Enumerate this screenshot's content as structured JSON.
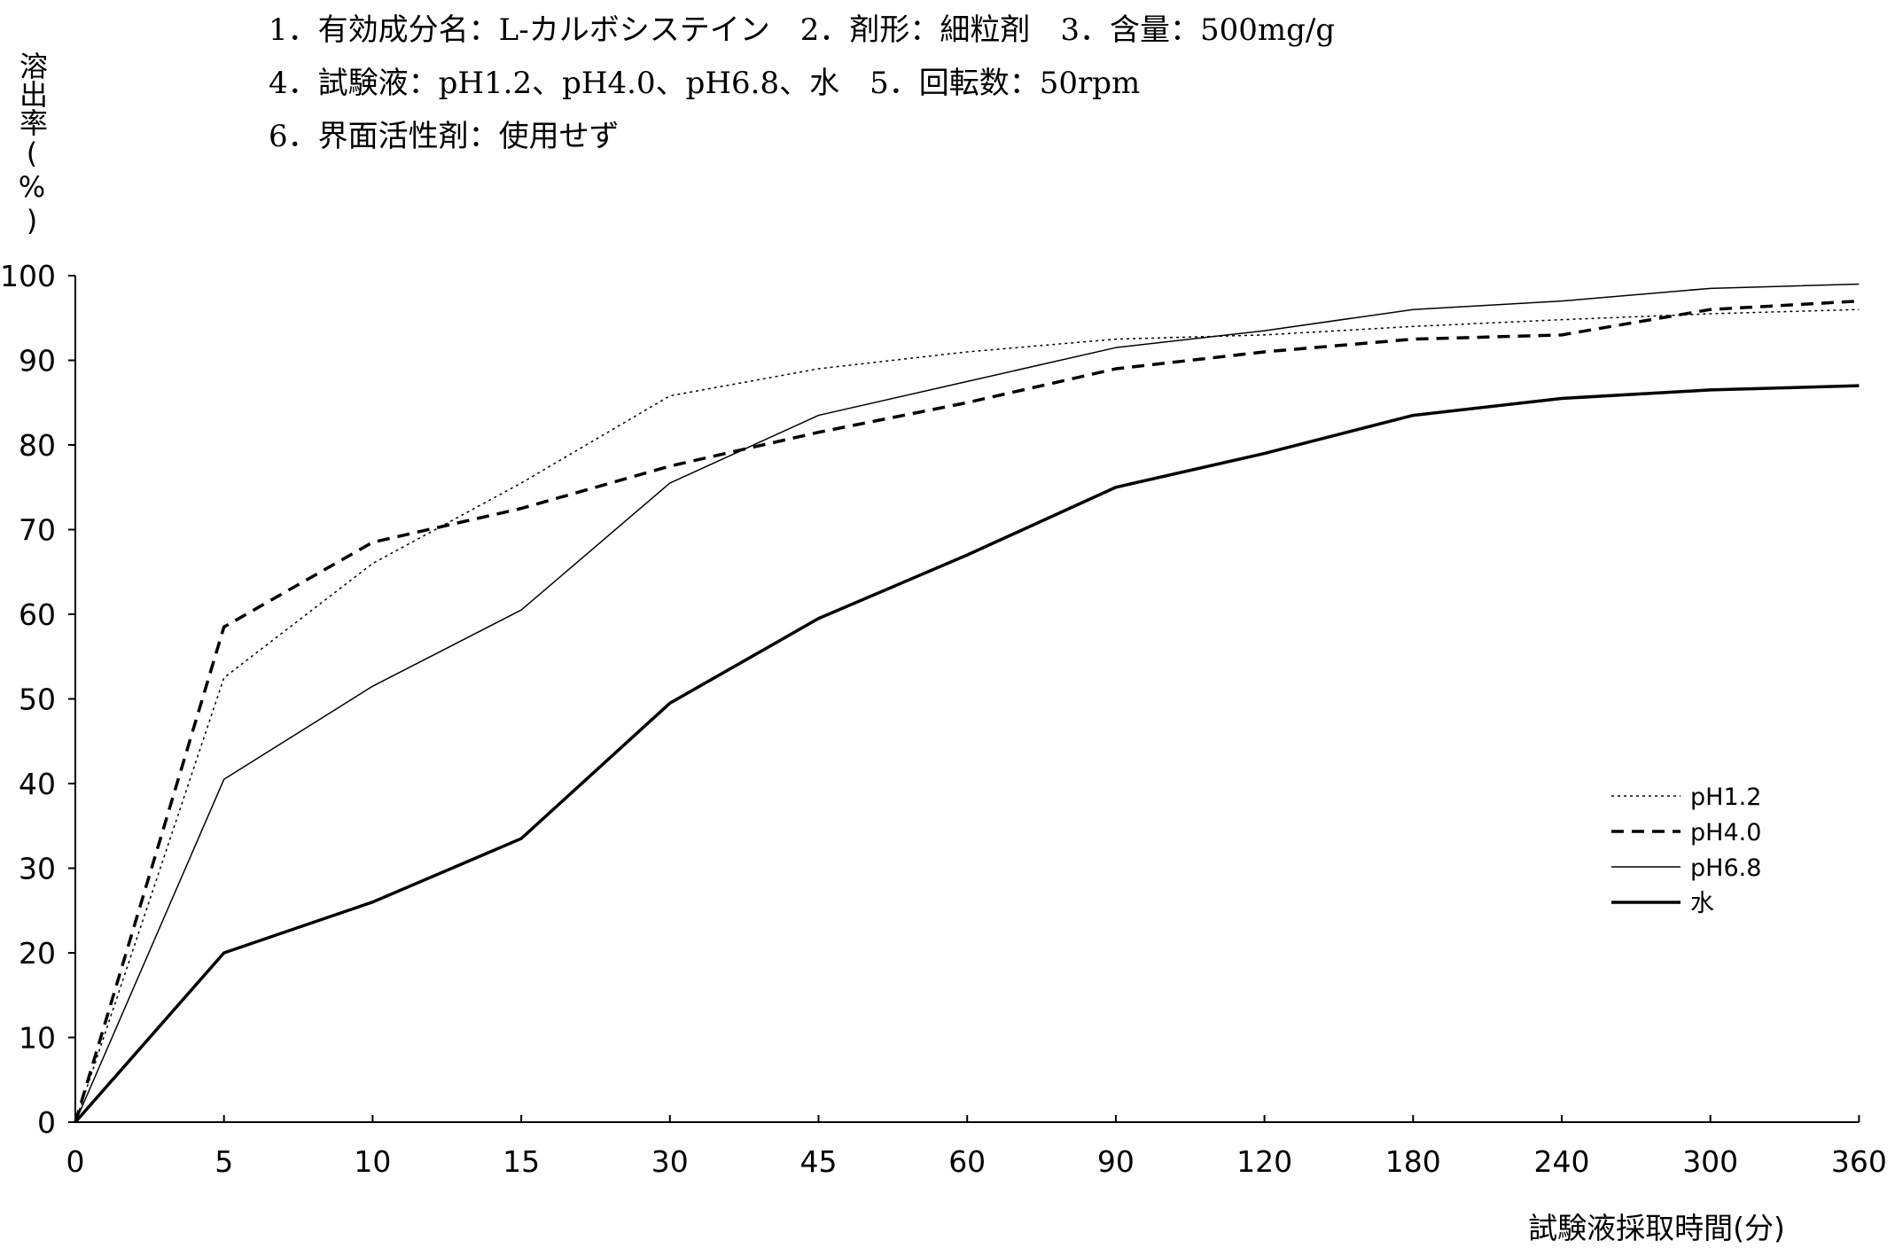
{
  "header": {
    "line1": "1．有効成分名：L-カルボシステイン　2．剤形：細粒剤　3．含量：500mg/g",
    "line2": "4．試験液：pH1.2、pH4.0、pH6.8、水　5．回転数：50rpm",
    "line3": "6．界面活性剤：使用せず"
  },
  "chart_data": {
    "type": "line",
    "title": "",
    "xlabel": "試験液採取時間(分)",
    "ylabel": "溶出率(%)",
    "categories": [
      "0",
      "5",
      "10",
      "15",
      "30",
      "45",
      "60",
      "90",
      "120",
      "180",
      "240",
      "300",
      "360"
    ],
    "yticks": [
      0,
      10,
      20,
      30,
      40,
      50,
      60,
      70,
      80,
      90,
      100
    ],
    "ylim": [
      0,
      100
    ],
    "grid": false,
    "legend_position": "bottom-right",
    "series": [
      {
        "name": "pH1.2",
        "style": "dotted",
        "values": [
          0,
          52.5,
          66,
          75.5,
          85.8,
          89,
          91,
          92.5,
          93,
          94,
          94.8,
          95.5,
          96
        ]
      },
      {
        "name": "pH4.0",
        "style": "dashed",
        "values": [
          0,
          58.5,
          68.5,
          72.5,
          77.5,
          81.5,
          85,
          89,
          91,
          92.5,
          93,
          96,
          97
        ]
      },
      {
        "name": "pH6.8",
        "style": "thin",
        "values": [
          0,
          40.5,
          51.5,
          60.5,
          75.5,
          83.5,
          87.5,
          91.5,
          93.5,
          96,
          97,
          98.5,
          99
        ]
      },
      {
        "name": "水",
        "style": "thick",
        "values": [
          0,
          20,
          26,
          33.5,
          49.5,
          59.5,
          67,
          75,
          79,
          83.5,
          85.5,
          86.5,
          87
        ]
      }
    ]
  }
}
